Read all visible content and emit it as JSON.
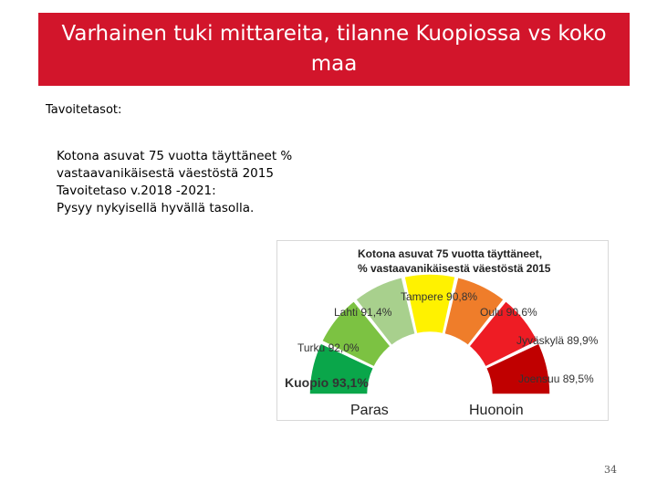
{
  "slide": {
    "title": "Varhainen tuki mittareita, tilanne Kuopiossa vs koko\nmaa",
    "subheading": "Tavoitetasot:",
    "body_lines": [
      "Kotona asuvat 75 vuotta täyttäneet %",
      "vastaavanikäisestä väestöstä 2015",
      "Tavoitetaso v.2018 -2021:",
      "Pysyy nykyisellä hyvällä tasolla."
    ],
    "page_number": "34"
  },
  "chart_data": {
    "type": "gauge",
    "title_lines": [
      "Kotona asuvat 75 vuotta täyttäneet,",
      "% vastaavanikäisestä väestöstä 2015"
    ],
    "left_label": "Paras",
    "right_label": "Huonoin",
    "segments": [
      {
        "label": "Kuopio 93,1%",
        "city": "Kuopio",
        "value": 93.1,
        "color": "#0aa64a",
        "highlight": true
      },
      {
        "label": "Turku 92,0%",
        "city": "Turku",
        "value": 92.0,
        "color": "#7cc242"
      },
      {
        "label": "Lahti 91,4%",
        "city": "Lahti",
        "value": 91.4,
        "color": "#a8d08d"
      },
      {
        "label": "Tampere 90,8%",
        "city": "Tampere",
        "value": 90.8,
        "color": "#fff200"
      },
      {
        "label": "Oulu 90.6%",
        "city": "Oulu",
        "value": 90.6,
        "color": "#ef7d2a"
      },
      {
        "label": "Jyväskylä 89,9%",
        "city": "Jyväskylä",
        "value": 89.9,
        "color": "#ee1c24"
      },
      {
        "label": "Joensuu 89,5%",
        "city": "Joensuu",
        "value": 89.5,
        "color": "#c00000"
      }
    ]
  }
}
